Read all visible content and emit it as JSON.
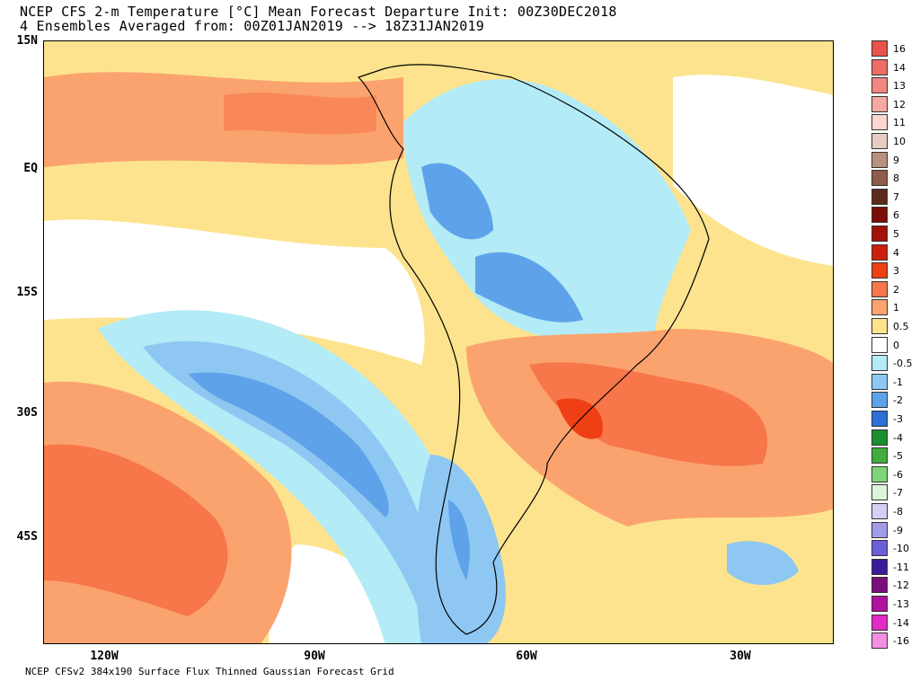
{
  "title_line1": "NCEP CFS 2-m Temperature [°C] Mean Forecast Departure Init: 00Z30DEC2018",
  "title_line2": "4 Ensembles Averaged from: 00Z01JAN2019 --> 18Z31JAN2019",
  "footer": "NCEP CFSv2 384x190 Surface Flux Thinned Gaussian Forecast Grid",
  "lat_labels": [
    "15N",
    "EQ",
    "15S",
    "30S",
    "45S"
  ],
  "lon_labels": [
    "120W",
    "90W",
    "60W",
    "30W"
  ],
  "legend": [
    {
      "label": "16",
      "color": "#e8534a"
    },
    {
      "label": "14",
      "color": "#ee6e66"
    },
    {
      "label": "13",
      "color": "#f2877f"
    },
    {
      "label": "12",
      "color": "#f6a9a2"
    },
    {
      "label": "11",
      "color": "#fbd6d2"
    },
    {
      "label": "10",
      "color": "#e6ccc4"
    },
    {
      "label": "9",
      "color": "#b9917f"
    },
    {
      "label": "8",
      "color": "#8e5c48"
    },
    {
      "label": "7",
      "color": "#5c2a1c"
    },
    {
      "label": "6",
      "color": "#7a0e06"
    },
    {
      "label": "5",
      "color": "#a21208"
    },
    {
      "label": "4",
      "color": "#cb1f0c"
    },
    {
      "label": "3",
      "color": "#ee4014"
    },
    {
      "label": "2",
      "color": "#f7764a"
    },
    {
      "label": "1",
      "color": "#fba36f"
    },
    {
      "label": "0.5",
      "color": "#fde38d"
    },
    {
      "label": "0",
      "color": "#ffffff"
    },
    {
      "label": "-0.5",
      "color": "#b3ebf6"
    },
    {
      "label": "-1",
      "color": "#8ec8f2"
    },
    {
      "label": "-2",
      "color": "#5ea3ea"
    },
    {
      "label": "-3",
      "color": "#2e6fd6"
    },
    {
      "label": "-4",
      "color": "#1a8f2e"
    },
    {
      "label": "-5",
      "color": "#3fae3f"
    },
    {
      "label": "-6",
      "color": "#7fd67a"
    },
    {
      "label": "-7",
      "color": "#dcf3dc"
    },
    {
      "label": "-8",
      "color": "#d3d0f3"
    },
    {
      "label": "-9",
      "color": "#a29be8"
    },
    {
      "label": "-10",
      "color": "#6b5fd8"
    },
    {
      "label": "-11",
      "color": "#3c1a9a"
    },
    {
      "label": "-12",
      "color": "#7a0e7a"
    },
    {
      "label": "-13",
      "color": "#b0139e"
    },
    {
      "label": "-14",
      "color": "#e02bc6"
    },
    {
      "label": "-16",
      "color": "#f38fe3"
    }
  ]
}
